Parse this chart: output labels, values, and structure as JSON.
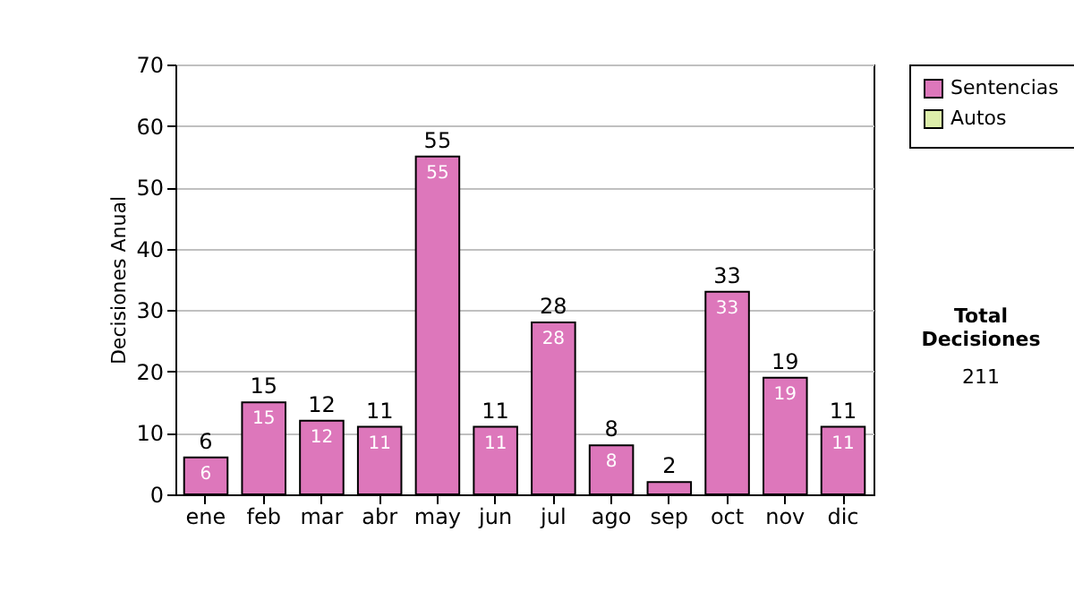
{
  "chart_data": {
    "type": "bar",
    "ylabel": "Decisiones Anual",
    "categories": [
      "ene",
      "feb",
      "mar",
      "abr",
      "may",
      "jun",
      "jul",
      "ago",
      "sep",
      "oct",
      "nov",
      "dic"
    ],
    "series": [
      {
        "name": "Sentencias",
        "color": "#dd77bb",
        "values": [
          6,
          15,
          12,
          11,
          55,
          11,
          28,
          8,
          2,
          33,
          19,
          11
        ],
        "value_labels": [
          "6",
          "15",
          "12",
          "11",
          "55",
          "11",
          "28",
          "8",
          null,
          "33",
          "19",
          "11"
        ]
      },
      {
        "name": "Autos",
        "color": "#ddeeaa",
        "values": [
          0,
          0,
          0,
          0,
          0,
          0,
          0,
          0,
          0,
          0,
          0,
          0
        ]
      }
    ],
    "stacked": true,
    "ylim": [
      0,
      70
    ],
    "yticks": [
      0,
      10,
      20,
      30,
      40,
      50,
      60,
      70
    ],
    "grid": "y",
    "legend": "right",
    "totals": [
      "6",
      "15",
      "12",
      "11",
      "55",
      "11",
      "28",
      "8",
      "2",
      "33",
      "19",
      "11"
    ],
    "annotations": [
      "Total Decisiones",
      "211"
    ]
  }
}
